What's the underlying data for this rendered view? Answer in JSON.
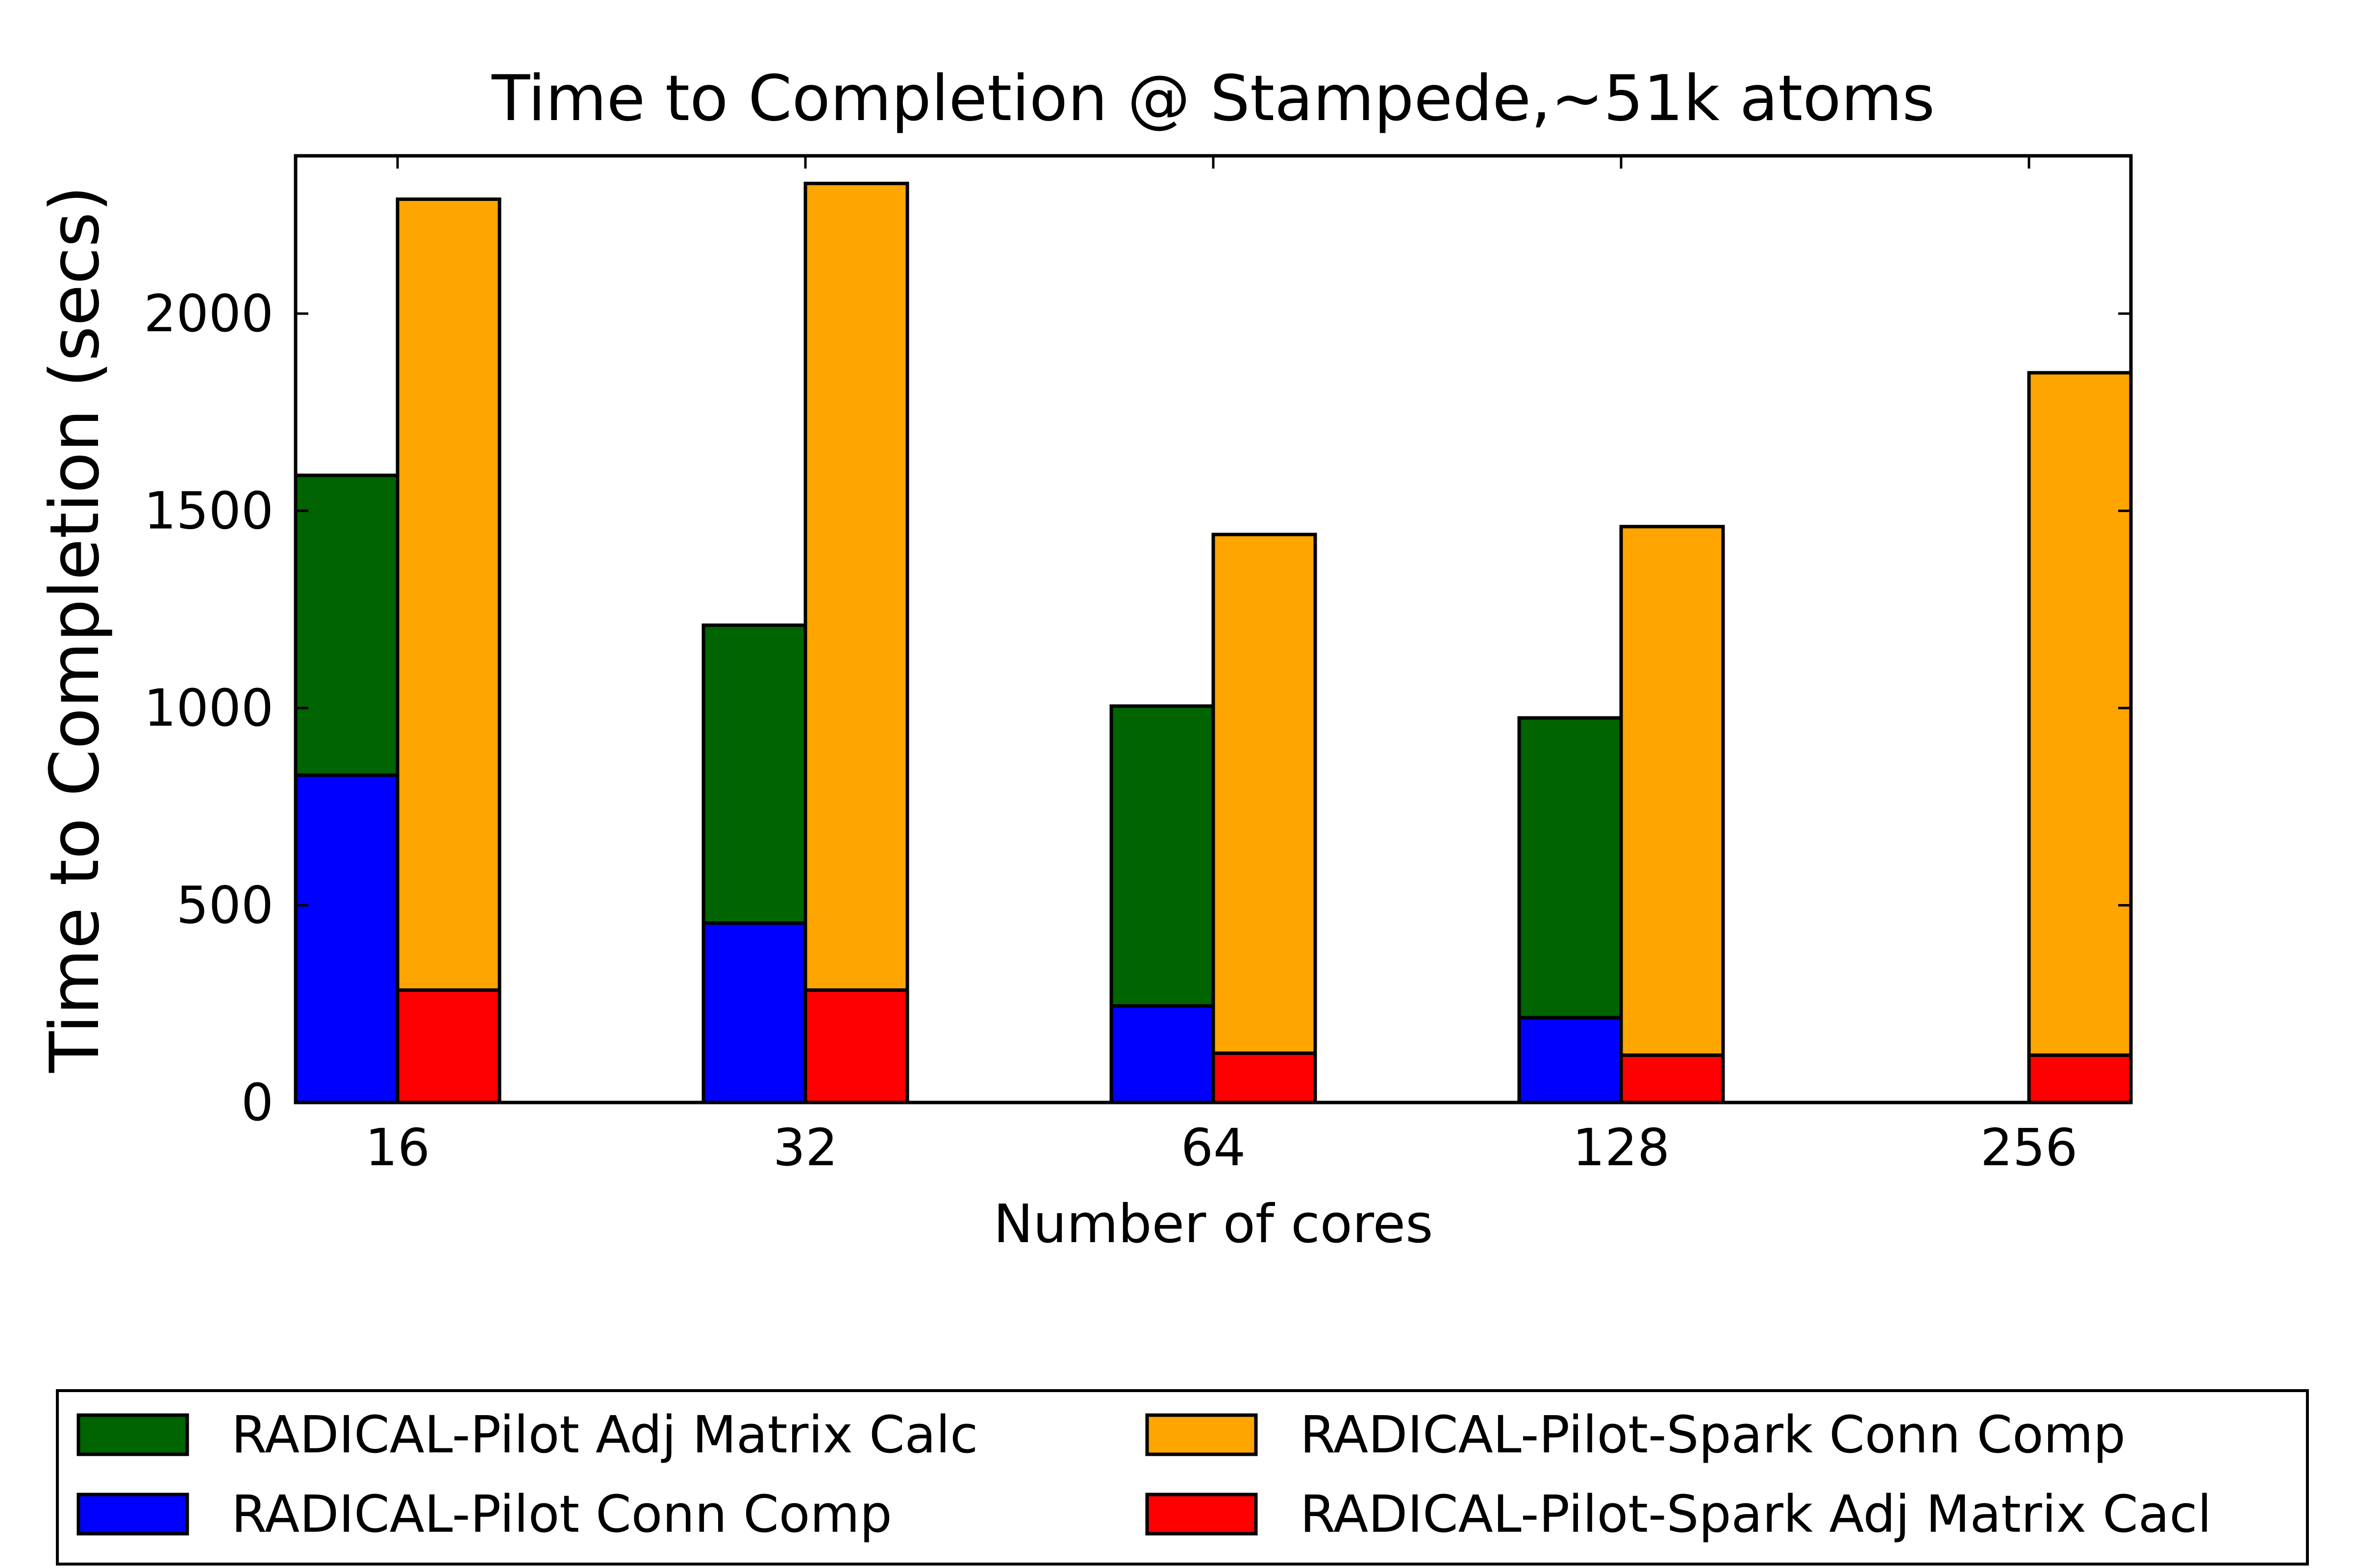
{
  "chart_data": {
    "type": "bar",
    "title": "Time to Completion @ Stampede,~51k atoms",
    "xlabel": "Number of cores",
    "ylabel": "Time to Completion (secs)",
    "categories": [
      "16",
      "32",
      "64",
      "128",
      "256"
    ],
    "ylim": [
      0,
      2400
    ],
    "yticks": [
      0,
      500,
      1000,
      1500,
      2000
    ],
    "grid": false,
    "legend_position": "bottom",
    "stacks": [
      {
        "side": "left",
        "series": [
          {
            "name": "RADICAL-Pilot Conn Comp",
            "color": "#0000ff",
            "values": [
              830,
              455,
              245,
              215,
              0
            ]
          },
          {
            "name": "RADICAL-Pilot Adj Matrix Calc",
            "color": "#006400",
            "values": [
              760,
              755,
              760,
              760,
              0
            ]
          }
        ]
      },
      {
        "side": "right",
        "series": [
          {
            "name": "RADICAL-Pilot-Spark Adj Matrix Cacl",
            "color": "#ff0000",
            "values": [
              285,
              285,
              125,
              120,
              120
            ]
          },
          {
            "name": "RADICAL-Pilot-Spark Conn Comp",
            "color": "#ffa500",
            "values": [
              2005,
              2045,
              1315,
              1340,
              1730
            ]
          }
        ]
      }
    ],
    "legend_order": [
      "RADICAL-Pilot Adj Matrix Calc",
      "RADICAL-Pilot-Spark Conn Comp",
      "RADICAL-Pilot Conn Comp",
      "RADICAL-Pilot-Spark Adj Matrix Cacl"
    ]
  }
}
